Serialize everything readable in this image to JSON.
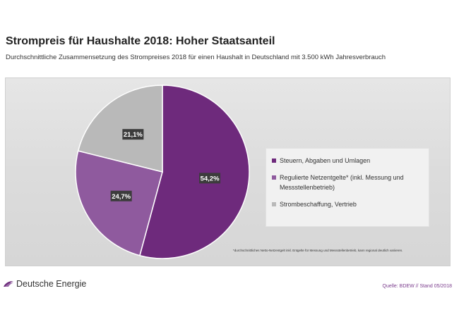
{
  "title": "Strompreis für Haushalte 2018: Hoher Staatsanteil",
  "subtitle": "Durchschnittliche Zusammensetzung des Strompreises 2018 für einen Haushalt in Deutschland mit 3.500 kWh Jahresverbrauch",
  "footnote": "*durchschnittliches Netto-Netzentgelt inkl. Entgelte für Messung und Messstellenbetrieb, kann regional deutlich variieren.",
  "logo_text": "Deutsche Energie",
  "source": "Quelle: BDEW // Stand 05/2018",
  "colors": {
    "accent": "#6b2a79",
    "logo": "#6b2a79"
  },
  "chart_data": {
    "type": "pie",
    "title": "",
    "legend_position": "right",
    "slices": [
      {
        "label": "Steuern, Abgaben und Umlagen",
        "value": 54.2,
        "display": "54,2%",
        "color": "#6e2a7c"
      },
      {
        "label": "Regulierte Netzentgelte* (inkl. Messung und Messstellenbetrieb)",
        "value": 24.7,
        "display": "24,7%",
        "color": "#8f5a9e"
      },
      {
        "label": "Strombeschaffung, Vertrieb",
        "value": 21.1,
        "display": "21,1%",
        "color": "#b9b9b9"
      }
    ]
  }
}
